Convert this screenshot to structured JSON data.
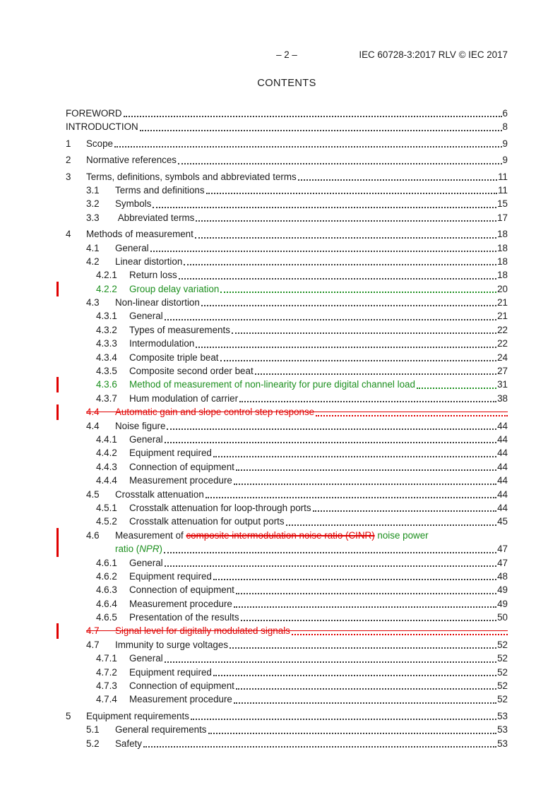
{
  "header": {
    "page_marker": "– 2 –",
    "doc_ref": "IEC 60728-3:2017 RLV © IEC 2017"
  },
  "contents_title": "CONTENTS",
  "colors": {
    "text": "#1c1c1c",
    "insertion_green": "#1c8f1e",
    "deletion_red": "#e00000",
    "change_bar_red": "#e00000"
  },
  "toc": {
    "entries": [
      {
        "level": 0,
        "num": "",
        "title": "FOREWORD",
        "page": "6"
      },
      {
        "level": 0,
        "num": "",
        "title": "INTRODUCTION",
        "page": "8"
      },
      {
        "level": 1,
        "num": "1",
        "title": "Scope",
        "page": "9"
      },
      {
        "level": 1,
        "num": "2",
        "title": "Normative references",
        "page": "9"
      },
      {
        "level": 1,
        "num": "3",
        "title": "Terms, definitions, symbols and abbreviated terms",
        "page": "11"
      },
      {
        "level": 2,
        "num": "3.1",
        "title": "Terms and definitions",
        "page": "11"
      },
      {
        "level": 2,
        "num": "3.2",
        "title": "Symbols",
        "page": "15"
      },
      {
        "level": 2,
        "num": "3.3",
        "title": " Abbreviated terms",
        "page": "17"
      },
      {
        "level": 1,
        "num": "4",
        "title": "Methods of measurement",
        "page": "18"
      },
      {
        "level": 2,
        "num": "4.1",
        "title": "General",
        "page": "18"
      },
      {
        "level": 2,
        "num": "4.2",
        "title": "Linear distortion",
        "page": "18"
      },
      {
        "level": 3,
        "num": "4.2.1",
        "title": "Return loss",
        "page": "18"
      },
      {
        "level": 3,
        "num": "4.2.2",
        "title": "Group delay variation",
        "page": "20",
        "style": "inserted",
        "changebar": true
      },
      {
        "level": 2,
        "num": "4.3",
        "title": "Non-linear distortion",
        "page": "21"
      },
      {
        "level": 3,
        "num": "4.3.1",
        "title": "General",
        "page": "21"
      },
      {
        "level": 3,
        "num": "4.3.2",
        "title": "Types of measurements",
        "page": "22"
      },
      {
        "level": 3,
        "num": "4.3.3",
        "title": "Intermodulation",
        "page": "22"
      },
      {
        "level": 3,
        "num": "4.3.4",
        "title": "Composite triple beat",
        "page": "24"
      },
      {
        "level": 3,
        "num": "4.3.5",
        "title": "Composite second order beat",
        "page": "27"
      },
      {
        "level": 3,
        "num": "4.3.6",
        "title": "Method of measurement of non-linearity for pure digital channel load",
        "page": "31",
        "style": "inserted",
        "changebar": true
      },
      {
        "level": 3,
        "num": "4.3.7",
        "title": "Hum modulation of carrier",
        "page": "38"
      },
      {
        "level": 2,
        "num": "4.4",
        "title": "Automatic gain and slope control step response",
        "page": "",
        "style": "deleted",
        "changebar": true
      },
      {
        "level": 2,
        "num": "4.4",
        "title": "Noise figure",
        "page": "44"
      },
      {
        "level": 3,
        "num": "4.4.1",
        "title": "General",
        "page": "44"
      },
      {
        "level": 3,
        "num": "4.4.2",
        "title": "Equipment required",
        "page": "44"
      },
      {
        "level": 3,
        "num": "4.4.3",
        "title": "Connection of equipment",
        "page": "44"
      },
      {
        "level": 3,
        "num": "4.4.4",
        "title": "Measurement procedure",
        "page": "44"
      },
      {
        "level": 2,
        "num": "4.5",
        "title": "Crosstalk attenuation",
        "page": "44"
      },
      {
        "level": 3,
        "num": "4.5.1",
        "title": "Crosstalk attenuation for loop-through ports",
        "page": "44"
      },
      {
        "level": 3,
        "num": "4.5.2",
        "title": "Crosstalk attenuation for output ports",
        "page": "45"
      },
      {
        "level": 2,
        "num": "4.6",
        "page": "",
        "leader": false,
        "changebar": true,
        "segments": [
          {
            "text": "Measurement of ",
            "style": "plain"
          },
          {
            "text": "composite intermodulation noise ratio (CINR)",
            "style": "del"
          },
          {
            "text": " noise power",
            "style": "ins"
          }
        ]
      },
      {
        "level": "wrap2",
        "num": "",
        "page": "47",
        "changebar": true,
        "segments": [
          {
            "text": "ratio (",
            "style": "ins"
          },
          {
            "text": "NPR",
            "style": "ins-italic"
          },
          {
            "text": ")",
            "style": "ins"
          }
        ]
      },
      {
        "level": 3,
        "num": "4.6.1",
        "title": "General",
        "page": "47"
      },
      {
        "level": 3,
        "num": "4.6.2",
        "title": "Equipment required",
        "page": "48"
      },
      {
        "level": 3,
        "num": "4.6.3",
        "title": "Connection of equipment",
        "page": "49"
      },
      {
        "level": 3,
        "num": "4.6.4",
        "title": "Measurement procedure",
        "page": "49"
      },
      {
        "level": 3,
        "num": "4.6.5",
        "title": "Presentation of the results",
        "page": "50"
      },
      {
        "level": 2,
        "num": "4.7",
        "title": "Signal level for digitally modulated signals",
        "page": "",
        "style": "deleted",
        "changebar": true
      },
      {
        "level": 2,
        "num": "4.7",
        "title": "Immunity to surge voltages",
        "page": "52"
      },
      {
        "level": 3,
        "num": "4.7.1",
        "title": "General",
        "page": "52"
      },
      {
        "level": 3,
        "num": "4.7.2",
        "title": "Equipment required",
        "page": "52"
      },
      {
        "level": 3,
        "num": "4.7.3",
        "title": "Connection of equipment",
        "page": "52"
      },
      {
        "level": 3,
        "num": "4.7.4",
        "title": "Measurement procedure",
        "page": "52"
      },
      {
        "level": 1,
        "num": "5",
        "title": "Equipment requirements",
        "page": "53"
      },
      {
        "level": 2,
        "num": "5.1",
        "title": "General requirements",
        "page": "53"
      },
      {
        "level": 2,
        "num": "5.2",
        "title": "Safety",
        "page": "53"
      }
    ]
  }
}
